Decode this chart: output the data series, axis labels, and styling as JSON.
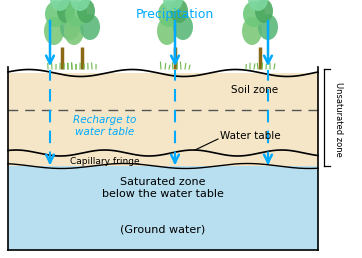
{
  "bg_color": "#ffffff",
  "soil_zone_color": "#f5e6c8",
  "saturated_zone_color": "#b8dff0",
  "arrow_color": "#00aaff",
  "title": "Precipitation",
  "title_color": "#00aaff",
  "soil_zone_label": "Soil zone",
  "recharge_label": "Recharge to\nwater table",
  "recharge_color": "#00aaff",
  "water_table_label": "Water table",
  "capillary_label": "Capillary fringe",
  "unsaturated_label": "Unsaturated zone",
  "saturated_label": "Saturated zone\nbelow the water table",
  "groundwater_label": "(Ground water)",
  "figsize": [
    3.62,
    2.58
  ],
  "dpi": 100
}
